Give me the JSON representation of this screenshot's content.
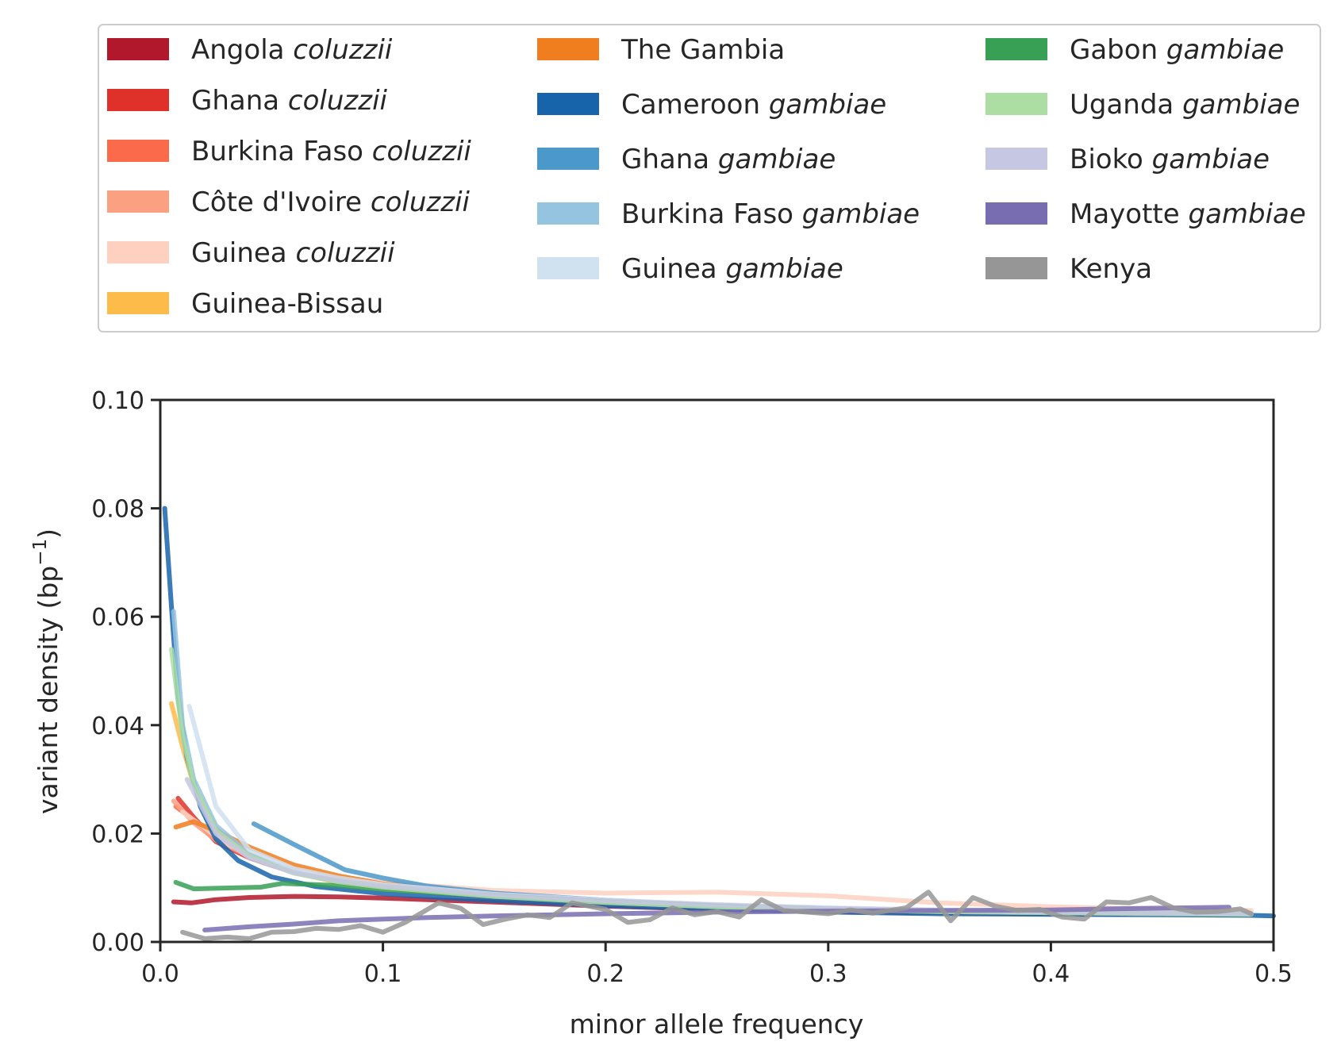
{
  "chart_data": {
    "type": "line",
    "xlabel": "minor allele frequency",
    "ylabel": {
      "text": "variant density (bp",
      "sup": "−1",
      "close": ")"
    },
    "xlim": [
      0,
      0.5
    ],
    "ylim": [
      0,
      0.1
    ],
    "xticks": [
      {
        "value": 0.0,
        "label": "0.0"
      },
      {
        "value": 0.1,
        "label": "0.1"
      },
      {
        "value": 0.2,
        "label": "0.2"
      },
      {
        "value": 0.3,
        "label": "0.3"
      },
      {
        "value": 0.4,
        "label": "0.4"
      },
      {
        "value": 0.5,
        "label": "0.5"
      }
    ],
    "yticks": [
      {
        "value": 0.0,
        "label": "0.00"
      },
      {
        "value": 0.02,
        "label": "0.02"
      },
      {
        "value": 0.04,
        "label": "0.04"
      },
      {
        "value": 0.06,
        "label": "0.06"
      },
      {
        "value": 0.08,
        "label": "0.08"
      },
      {
        "value": 0.1,
        "label": "0.10"
      }
    ],
    "grid": false,
    "legend_placement": "above plot, 3 columns",
    "series": [
      {
        "name": "Angola",
        "name_italic": "coluzzii",
        "color": "#b2182b",
        "x": [
          0.006,
          0.014,
          0.025,
          0.04,
          0.06,
          0.08,
          0.1,
          0.12,
          0.14,
          0.16,
          0.18,
          0.2,
          0.25,
          0.3,
          0.35,
          0.4,
          0.45,
          0.49
        ],
        "y": [
          0.0074,
          0.0072,
          0.0078,
          0.0082,
          0.0084,
          0.0083,
          0.0081,
          0.0078,
          0.0075,
          0.0072,
          0.0069,
          0.0066,
          0.006,
          0.0056,
          0.0054,
          0.0052,
          0.0051,
          0.005
        ]
      },
      {
        "name": "Ghana",
        "name_italic": "coluzzii",
        "color": "#e0302a",
        "x": [
          0.008,
          0.015,
          0.025,
          0.04,
          0.06,
          0.08,
          0.1,
          0.15,
          0.2,
          0.25,
          0.3,
          0.35,
          0.4,
          0.45,
          0.49
        ],
        "y": [
          0.0265,
          0.023,
          0.0185,
          0.0155,
          0.0128,
          0.0112,
          0.0102,
          0.0085,
          0.0072,
          0.0065,
          0.006,
          0.0057,
          0.0055,
          0.0053,
          0.0052
        ]
      },
      {
        "name": "Burkina Faso",
        "name_italic": "coluzzii",
        "color": "#fb6a4a",
        "x": [
          0.007,
          0.015,
          0.025,
          0.04,
          0.06,
          0.08,
          0.1,
          0.15,
          0.2,
          0.25,
          0.3,
          0.35,
          0.4,
          0.45,
          0.49
        ],
        "y": [
          0.025,
          0.0225,
          0.019,
          0.016,
          0.0132,
          0.0115,
          0.0104,
          0.0087,
          0.0074,
          0.0066,
          0.0061,
          0.0058,
          0.0055,
          0.0053,
          0.0052
        ]
      },
      {
        "name": "Côte d'Ivoire",
        "name_italic": "coluzzii",
        "color": "#fca082",
        "x": [
          0.006,
          0.015,
          0.025,
          0.04,
          0.06,
          0.08,
          0.1,
          0.15,
          0.2,
          0.25,
          0.3,
          0.35,
          0.4,
          0.45,
          0.49
        ],
        "y": [
          0.026,
          0.022,
          0.0188,
          0.0158,
          0.013,
          0.0114,
          0.0103,
          0.0087,
          0.0075,
          0.0067,
          0.0062,
          0.0058,
          0.0055,
          0.0053,
          0.0052
        ]
      },
      {
        "name": "Guinea",
        "name_italic": "coluzzii",
        "color": "#fdd0c0",
        "x": [
          0.01,
          0.03,
          0.06,
          0.1,
          0.15,
          0.2,
          0.25,
          0.3,
          0.35,
          0.4,
          0.45,
          0.49
        ],
        "y": [
          0.024,
          0.018,
          0.013,
          0.011,
          0.0095,
          0.009,
          0.0092,
          0.0085,
          0.0072,
          0.0065,
          0.006,
          0.0058
        ]
      },
      {
        "name": "Guinea-Bissau",
        "name_italic": "",
        "color": "#fdbb4a",
        "x": [
          0.005,
          0.01,
          0.015,
          0.025,
          0.04,
          0.06,
          0.08,
          0.1,
          0.15,
          0.2,
          0.25,
          0.3,
          0.35,
          0.4,
          0.45,
          0.49
        ],
        "y": [
          0.044,
          0.036,
          0.029,
          0.021,
          0.016,
          0.0128,
          0.011,
          0.0099,
          0.0082,
          0.0071,
          0.0064,
          0.006,
          0.0057,
          0.0055,
          0.0053,
          0.0052
        ]
      },
      {
        "name": "The Gambia",
        "name_italic": "",
        "color": "#f07d1e",
        "x": [
          0.007,
          0.015,
          0.025,
          0.04,
          0.06,
          0.08,
          0.1,
          0.15,
          0.2,
          0.25,
          0.3,
          0.35,
          0.4,
          0.45,
          0.49
        ],
        "y": [
          0.0212,
          0.0222,
          0.0205,
          0.0175,
          0.0142,
          0.0122,
          0.0107,
          0.0088,
          0.0075,
          0.0067,
          0.0061,
          0.0058,
          0.0055,
          0.0053,
          0.0052
        ]
      },
      {
        "name": "Cameroon",
        "name_italic": "gambiae",
        "color": "#1764ab",
        "x": [
          0.002,
          0.005,
          0.008,
          0.012,
          0.018,
          0.025,
          0.035,
          0.05,
          0.07,
          0.1,
          0.15,
          0.2,
          0.25,
          0.3,
          0.35,
          0.4,
          0.45,
          0.49,
          0.5
        ],
        "y": [
          0.08,
          0.062,
          0.045,
          0.034,
          0.025,
          0.019,
          0.015,
          0.012,
          0.0102,
          0.0089,
          0.0076,
          0.0067,
          0.006,
          0.0055,
          0.0052,
          0.0051,
          0.005,
          0.0049,
          0.0048
        ]
      },
      {
        "name": "Ghana",
        "name_italic": "gambiae",
        "color": "#4b98ca",
        "x": [
          0.042,
          0.06,
          0.083,
          0.1,
          0.12,
          0.15,
          0.2,
          0.25,
          0.3,
          0.35,
          0.4,
          0.45,
          0.49
        ],
        "y": [
          0.0218,
          0.018,
          0.0133,
          0.0118,
          0.0103,
          0.009,
          0.0077,
          0.0068,
          0.0061,
          0.0057,
          0.0055,
          0.0053,
          0.0052
        ]
      },
      {
        "name": "Burkina Faso",
        "name_italic": "gambiae",
        "color": "#94c4e0",
        "x": [
          0.006,
          0.01,
          0.015,
          0.025,
          0.04,
          0.06,
          0.08,
          0.1,
          0.15,
          0.2,
          0.25,
          0.3,
          0.35,
          0.4,
          0.45,
          0.49
        ],
        "y": [
          0.061,
          0.04,
          0.03,
          0.0215,
          0.0162,
          0.013,
          0.0113,
          0.0102,
          0.0085,
          0.0073,
          0.0065,
          0.006,
          0.0056,
          0.0054,
          0.0052,
          0.0051
        ]
      },
      {
        "name": "Guinea",
        "name_italic": "gambiae",
        "color": "#d0e1f0",
        "x": [
          0.013,
          0.025,
          0.04,
          0.06,
          0.08,
          0.1,
          0.15,
          0.2,
          0.25,
          0.3,
          0.35,
          0.4,
          0.45,
          0.49
        ],
        "y": [
          0.0435,
          0.025,
          0.017,
          0.0135,
          0.0118,
          0.0106,
          0.0088,
          0.0077,
          0.0069,
          0.0063,
          0.0059,
          0.0056,
          0.0054,
          0.0053
        ]
      },
      {
        "name": "Gabon",
        "name_italic": "gambiae",
        "color": "#37a055",
        "x": [
          0.007,
          0.015,
          0.025,
          0.045,
          0.055,
          0.08,
          0.1,
          0.15,
          0.2,
          0.25,
          0.3,
          0.35,
          0.4,
          0.45,
          0.49
        ],
        "y": [
          0.011,
          0.0098,
          0.0099,
          0.0101,
          0.0108,
          0.0104,
          0.0097,
          0.0085,
          0.0074,
          0.0066,
          0.006,
          0.0056,
          0.0054,
          0.0052,
          0.0051
        ]
      },
      {
        "name": "Uganda",
        "name_italic": "gambiae",
        "color": "#acdea4",
        "x": [
          0.005,
          0.01,
          0.015,
          0.025,
          0.04,
          0.06,
          0.08,
          0.1,
          0.15,
          0.2,
          0.25,
          0.3,
          0.35,
          0.4,
          0.45,
          0.49
        ],
        "y": [
          0.054,
          0.038,
          0.029,
          0.0205,
          0.0158,
          0.0127,
          0.0111,
          0.0101,
          0.0084,
          0.0073,
          0.0065,
          0.006,
          0.0056,
          0.0054,
          0.0052,
          0.0051
        ]
      },
      {
        "name": "Bioko",
        "name_italic": "gambiae",
        "color": "#c6c7e2",
        "x": [
          0.012,
          0.025,
          0.04,
          0.06,
          0.08,
          0.1,
          0.15,
          0.2,
          0.25,
          0.3,
          0.35,
          0.4,
          0.45,
          0.49
        ],
        "y": [
          0.03,
          0.02,
          0.0155,
          0.0128,
          0.0113,
          0.0103,
          0.0087,
          0.0076,
          0.0068,
          0.0062,
          0.0058,
          0.0055,
          0.0053,
          0.0052
        ]
      },
      {
        "name": "Mayotte",
        "name_italic": "gambiae",
        "color": "#796db1",
        "x": [
          0.02,
          0.04,
          0.06,
          0.08,
          0.1,
          0.12,
          0.15,
          0.2,
          0.25,
          0.3,
          0.35,
          0.4,
          0.44,
          0.48
        ],
        "y": [
          0.0022,
          0.0028,
          0.0033,
          0.0039,
          0.0042,
          0.0045,
          0.0048,
          0.0052,
          0.0055,
          0.0057,
          0.0058,
          0.0059,
          0.0062,
          0.0064
        ]
      },
      {
        "name": "Kenya",
        "name_italic": "",
        "color": "#969696",
        "x": [
          0.01,
          0.02,
          0.03,
          0.04,
          0.05,
          0.06,
          0.07,
          0.08,
          0.09,
          0.1,
          0.11,
          0.125,
          0.135,
          0.145,
          0.155,
          0.165,
          0.175,
          0.185,
          0.2,
          0.21,
          0.22,
          0.23,
          0.24,
          0.25,
          0.26,
          0.27,
          0.28,
          0.29,
          0.3,
          0.31,
          0.32,
          0.335,
          0.345,
          0.355,
          0.365,
          0.375,
          0.385,
          0.395,
          0.405,
          0.415,
          0.425,
          0.435,
          0.445,
          0.455,
          0.465,
          0.475,
          0.485,
          0.49
        ],
        "y": [
          0.0018,
          0.0006,
          0.0009,
          0.0006,
          0.0018,
          0.0019,
          0.0025,
          0.0023,
          0.003,
          0.0018,
          0.0036,
          0.0072,
          0.0062,
          0.0032,
          0.0042,
          0.005,
          0.0045,
          0.0072,
          0.006,
          0.0036,
          0.0041,
          0.0063,
          0.005,
          0.0056,
          0.0046,
          0.0078,
          0.0058,
          0.0055,
          0.0052,
          0.0059,
          0.0053,
          0.0063,
          0.0092,
          0.0039,
          0.0082,
          0.0066,
          0.0058,
          0.006,
          0.0046,
          0.0042,
          0.0074,
          0.0072,
          0.0082,
          0.0063,
          0.0055,
          0.0056,
          0.0061,
          0.0052
        ]
      }
    ]
  }
}
